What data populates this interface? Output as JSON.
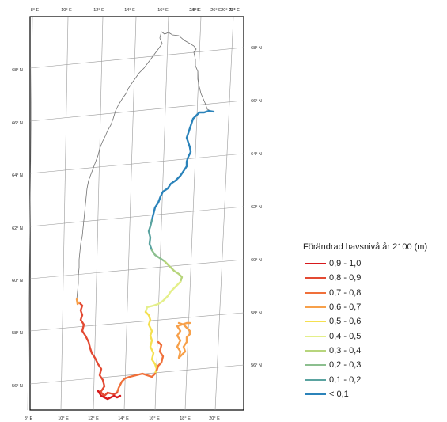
{
  "map": {
    "lon_labels_top": [
      "8° E",
      "10° E",
      "12° E",
      "14° E",
      "16° E",
      "18° E",
      "20° E",
      "22° E",
      "24° E",
      "26° E",
      "28° E"
    ],
    "lon_labels_bottom": [
      "8° E",
      "10° E",
      "12° E",
      "14° E",
      "16° E",
      "18° E",
      "20° E"
    ],
    "lat_labels_left": [
      "68° N",
      "66° N",
      "64° N",
      "62° N",
      "60° N",
      "58° N",
      "56° N"
    ],
    "lat_labels_right": [
      "68° N",
      "66° N",
      "64° N",
      "62° N",
      "60° N",
      "58° N",
      "56° N"
    ],
    "border_color": "#707070",
    "graticule_color": "#9a9a9a"
  },
  "legend": {
    "title": "Förändrad havsnivå år 2100 (m)",
    "items": [
      {
        "label": "0,9 - 1,0",
        "color": "#d7191c"
      },
      {
        "label": "0,8 - 0,9",
        "color": "#e34a33"
      },
      {
        "label": "0,7 - 0,8",
        "color": "#f0703a"
      },
      {
        "label": "0,6 - 0,7",
        "color": "#f7a04a"
      },
      {
        "label": "0,5 - 0,6",
        "color": "#f5e050"
      },
      {
        "label": "0,4 - 0,5",
        "color": "#e4ef8a"
      },
      {
        "label": "0,3 - 0,4",
        "color": "#b7d57c"
      },
      {
        "label": "0,2 - 0,3",
        "color": "#8cbf8f"
      },
      {
        "label": "0,1 - 0,2",
        "color": "#5aa3a0"
      },
      {
        "label": "< 0,1",
        "color": "#2b83ba"
      }
    ]
  }
}
